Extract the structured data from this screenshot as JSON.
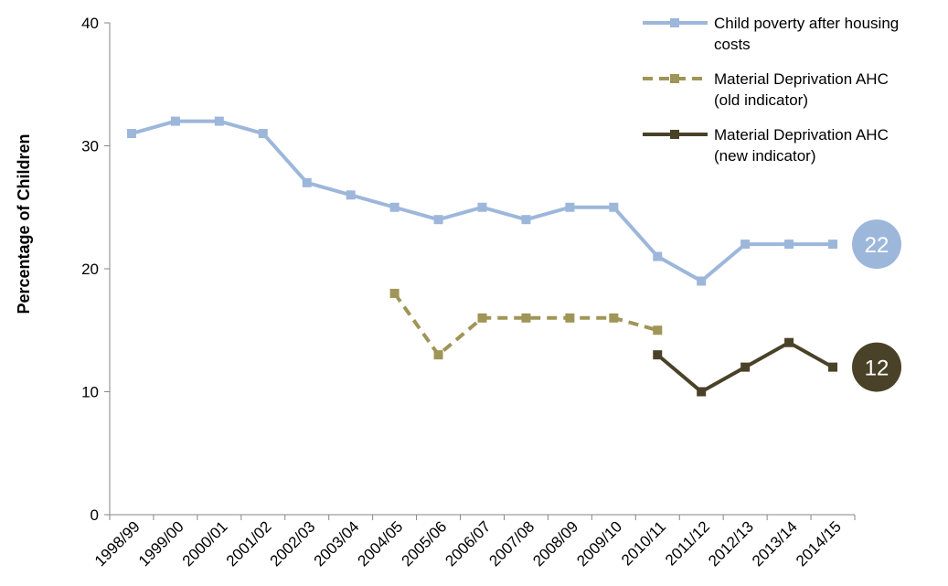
{
  "chart_data": {
    "type": "line",
    "ylabel": "Percentage of Children",
    "ylim": [
      0,
      40
    ],
    "yticks": [
      0,
      10,
      20,
      30,
      40
    ],
    "grid": false,
    "legend_position": "top-right",
    "categories": [
      "1998/99",
      "1999/00",
      "2000/01",
      "2001/02",
      "2002/03",
      "2003/04",
      "2004/05",
      "2005/06",
      "2006/07",
      "2007/08",
      "2008/09",
      "2009/10",
      "2010/11",
      "2011/12",
      "2012/13",
      "2013/14",
      "2014/15"
    ],
    "series": [
      {
        "name": "Child poverty after housing costs",
        "legend_lines": [
          "Child poverty after housing",
          "costs"
        ],
        "color": "#9DB7DB",
        "style": "solid",
        "values": [
          31,
          32,
          32,
          31,
          27,
          26,
          25,
          24,
          25,
          24,
          25,
          25,
          21,
          19,
          22,
          22,
          22
        ],
        "end_label": "22",
        "end_label_color": "#9DB7DB"
      },
      {
        "name": "Material Deprivation AHC (old indicator)",
        "legend_lines": [
          "Material Deprivation AHC",
          "(old indicator)"
        ],
        "color": "#A09558",
        "style": "dashed",
        "values": [
          null,
          null,
          null,
          null,
          null,
          null,
          18,
          13,
          16,
          16,
          16,
          16,
          15,
          null,
          null,
          null,
          null
        ]
      },
      {
        "name": "Material Deprivation AHC (new indicator)",
        "legend_lines": [
          "Material Deprivation AHC",
          "(new indicator)"
        ],
        "color": "#4A4228",
        "style": "solid",
        "values": [
          null,
          null,
          null,
          null,
          null,
          null,
          null,
          null,
          null,
          null,
          null,
          null,
          13,
          10,
          12,
          14,
          12
        ],
        "end_label": "12",
        "end_label_color": "#4A4228"
      }
    ]
  }
}
